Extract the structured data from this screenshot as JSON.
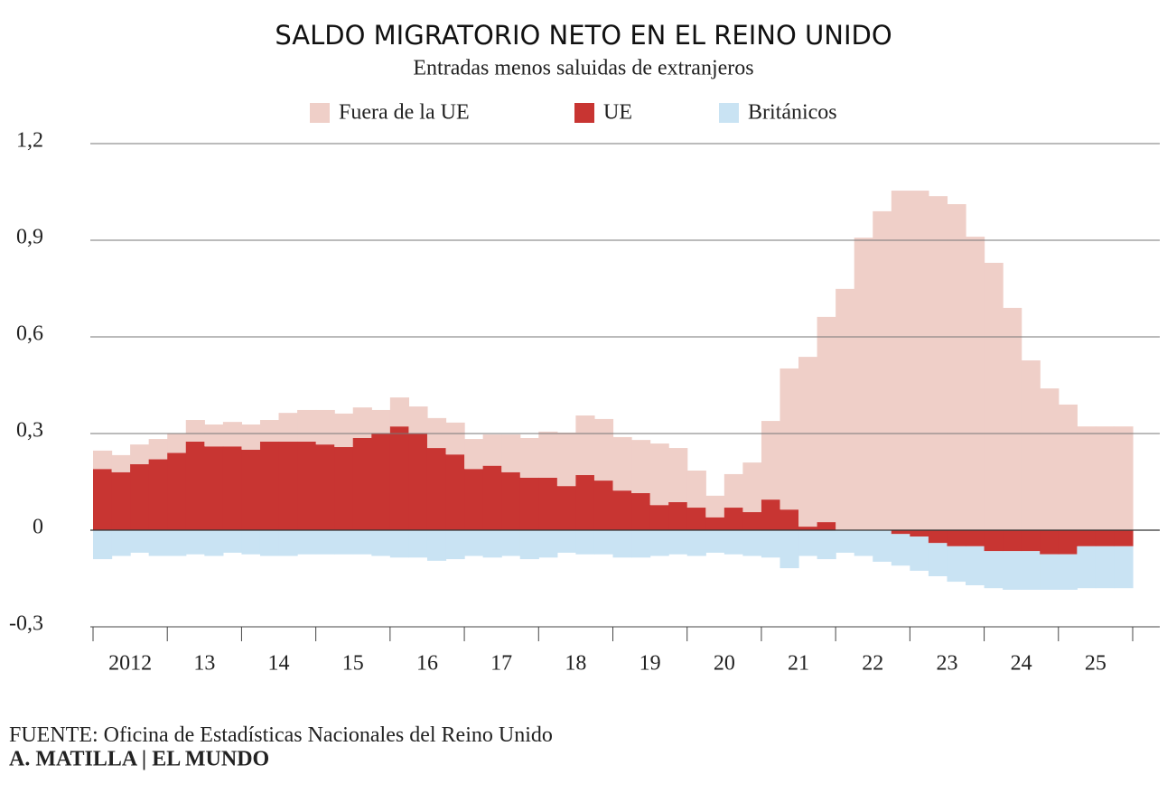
{
  "chart_data": {
    "type": "stacked-step-area",
    "title": "SALDO MIGRATORIO NETO EN EL REINO UNIDO",
    "subtitle": "Entradas menos saluidas de extranjeros",
    "categories": [
      "2012",
      null,
      null,
      null,
      "13",
      null,
      null,
      null,
      "14",
      null,
      null,
      null,
      "15",
      null,
      null,
      null,
      "16",
      null,
      null,
      null,
      "17",
      null,
      null,
      null,
      "18",
      null,
      null,
      null,
      "19",
      null,
      null,
      null,
      "20",
      null,
      null,
      null,
      "21",
      null,
      null,
      null,
      "22",
      null,
      null,
      null,
      "23",
      null,
      null,
      null,
      "24",
      null,
      null,
      null,
      "25",
      null,
      null,
      null
    ],
    "series": [
      {
        "name": "Fuera de la UE",
        "color": "#efcfc8",
        "values": [
          0.057,
          0.053,
          0.061,
          0.063,
          0.06,
          0.067,
          0.068,
          0.076,
          0.078,
          0.067,
          0.089,
          0.098,
          0.107,
          0.104,
          0.095,
          0.073,
          0.09,
          0.084,
          0.093,
          0.099,
          0.093,
          0.097,
          0.117,
          0.123,
          0.143,
          0.166,
          0.185,
          0.191,
          0.166,
          0.165,
          0.191,
          0.168,
          0.115,
          0.067,
          0.104,
          0.154,
          0.244,
          0.438,
          0.527,
          0.637,
          0.749,
          0.908,
          0.99,
          1.054,
          1.054,
          1.037,
          1.012,
          0.911,
          0.83,
          0.69,
          0.527,
          0.44,
          0.39,
          0.322,
          0.322,
          0.322
        ]
      },
      {
        "name": "UE",
        "color": "#c83532",
        "values": [
          0.19,
          0.18,
          0.205,
          0.22,
          0.24,
          0.275,
          0.26,
          0.26,
          0.25,
          0.275,
          0.275,
          0.275,
          0.266,
          0.258,
          0.286,
          0.3,
          0.322,
          0.3,
          0.255,
          0.235,
          0.19,
          0.2,
          0.18,
          0.163,
          0.163,
          0.137,
          0.171,
          0.154,
          0.123,
          0.115,
          0.078,
          0.087,
          0.07,
          0.04,
          0.07,
          0.056,
          0.095,
          0.064,
          0.011,
          0.025,
          0,
          0,
          0,
          -0.012,
          -0.02,
          -0.04,
          -0.05,
          -0.05,
          -0.065,
          -0.065,
          -0.065,
          -0.075,
          -0.075,
          -0.05,
          -0.05,
          -0.05
        ]
      },
      {
        "name": "Británicos",
        "color": "#c9e3f3",
        "values": [
          -0.09,
          -0.08,
          -0.07,
          -0.08,
          -0.08,
          -0.075,
          -0.08,
          -0.07,
          -0.075,
          -0.08,
          -0.08,
          -0.075,
          -0.075,
          -0.075,
          -0.075,
          -0.08,
          -0.085,
          -0.085,
          -0.095,
          -0.09,
          -0.08,
          -0.085,
          -0.08,
          -0.09,
          -0.085,
          -0.07,
          -0.075,
          -0.075,
          -0.085,
          -0.085,
          -0.08,
          -0.075,
          -0.08,
          -0.07,
          -0.075,
          -0.08,
          -0.085,
          -0.118,
          -0.08,
          -0.09,
          -0.07,
          -0.08,
          -0.098,
          -0.098,
          -0.106,
          -0.103,
          -0.11,
          -0.121,
          -0.115,
          -0.12,
          -0.12,
          -0.11,
          -0.11,
          -0.13,
          -0.13,
          -0.13
        ]
      }
    ],
    "ylim": [
      -0.3,
      1.2
    ],
    "yticks": [
      {
        "value": 1.2,
        "label": "1,2"
      },
      {
        "value": 0.9,
        "label": "0,9"
      },
      {
        "value": 0.6,
        "label": "0,6"
      },
      {
        "value": 0.3,
        "label": "0,3"
      },
      0,
      {
        "value": -0.3,
        "label": "-0,3"
      }
    ],
    "grid": true,
    "source_label": "FUENTE:",
    "source": "Oficina de Estadísticas Nacionales del Reino Unido",
    "credit": "A. MATILLA | EL MUNDO"
  }
}
